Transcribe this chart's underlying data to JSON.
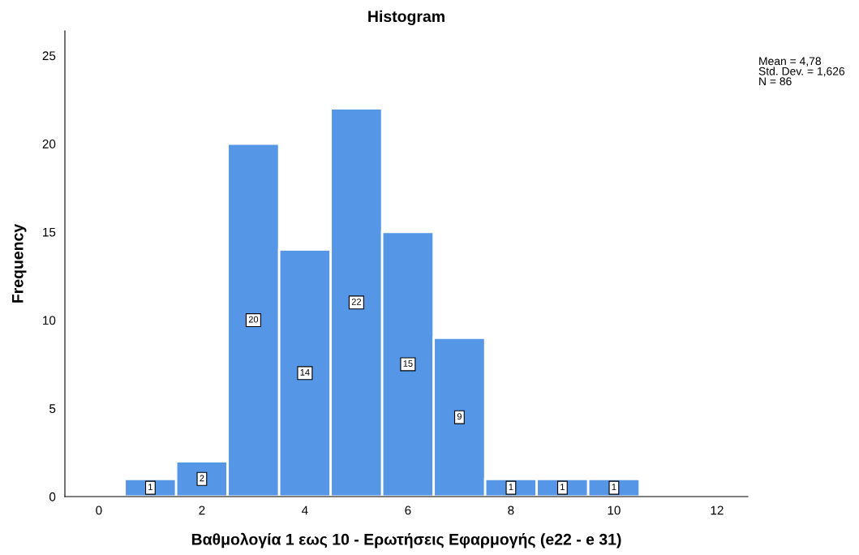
{
  "chart_data": {
    "type": "histogram",
    "title": "Histogram",
    "xlabel": "Βαθμολογία 1 εως 10 - Ερωτήσεις Εφαρμογής (e22 - e 31)",
    "ylabel": "Frequency",
    "bins": [
      0.5,
      1.5,
      2.5,
      3.5,
      4.5,
      5.5,
      6.5,
      7.5,
      8.5,
      9.5,
      10.5
    ],
    "values": [
      1,
      2,
      20,
      14,
      22,
      15,
      9,
      1,
      1,
      1
    ],
    "color": "#5596e6",
    "data_labels": true,
    "xlim": [
      -0.66,
      12.6
    ],
    "xticks": [
      0,
      2,
      4,
      6,
      8,
      10,
      12
    ],
    "ylim": [
      0,
      26.4
    ],
    "yticks": [
      0,
      5,
      10,
      15,
      20,
      25
    ],
    "grid": false,
    "annotations": [
      "Mean = 4,78\nStd. Dev. = 1,626\nN = 86"
    ]
  }
}
